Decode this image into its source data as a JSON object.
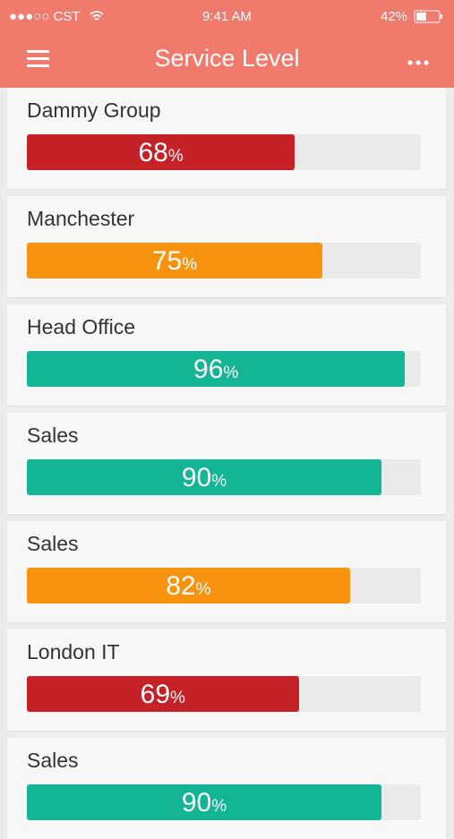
{
  "status_bar": {
    "carrier": "●●●○○ CST",
    "time": "9:41 AM",
    "battery": "42%"
  },
  "header": {
    "title": "Service Level"
  },
  "xlim": [
    0,
    100
  ],
  "unit": "%",
  "items": [
    {
      "name": "Dammy Group",
      "value": 68,
      "color": "#c42226"
    },
    {
      "name": "Manchester",
      "value": 75,
      "color": "#f7930e"
    },
    {
      "name": "Head Office",
      "value": 96,
      "color": "#14b595"
    },
    {
      "name": "Sales",
      "value": 90,
      "color": "#14b595"
    },
    {
      "name": "Sales",
      "value": 82,
      "color": "#f7930e"
    },
    {
      "name": "London IT",
      "value": 69,
      "color": "#c42226"
    },
    {
      "name": "Sales",
      "value": 90,
      "color": "#14b595"
    }
  ]
}
